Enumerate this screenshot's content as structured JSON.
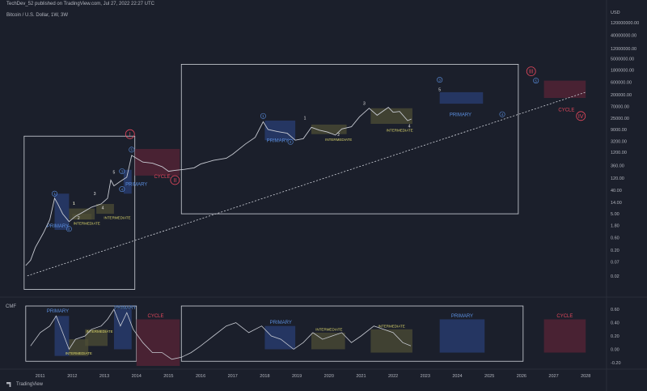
{
  "header": {
    "published": "TechDev_52 published on TradingView.com, Jul 27, 2022 22:27 UTC",
    "symbol": "Bitcoin / U.S. Dollar, 1W, 3W"
  },
  "indicator_label": "CMF",
  "logo_text": "TradingView",
  "colors": {
    "background": "#1b1f2b",
    "price_line": "#c8cbd3",
    "primary_box": "#2a3f75",
    "intermediate_box": "#4e4e36",
    "cycle_box": "#5a2437",
    "cycle_text": "#e3475c",
    "primary_text": "#5b8fe0",
    "intermediate_text": "#d9d46a"
  },
  "chart_data": [
    {
      "type": "line",
      "title": "",
      "series": [
        {
          "name": "Bitcoin / U.S. Dollar",
          "scale": "log"
        }
      ],
      "y_unit": "USD",
      "y_ticks": [
        "120000000.00",
        "40000000.00",
        "12000000.00",
        "5000000.00",
        "1800000.00",
        "600000.00",
        "200000.00",
        "70000.00",
        "25000.00",
        "9000.00",
        "3200.00",
        "1200.00",
        "360.00",
        "120.00",
        "40.00",
        "14.00",
        "5.00",
        "1.80",
        "0.60",
        "0.20",
        "0.07",
        "0.02"
      ],
      "x_ticks": [
        "2011",
        "2012",
        "2013",
        "2014",
        "2015",
        "2016",
        "2017",
        "2018",
        "2019",
        "2020",
        "2021",
        "2022",
        "2023",
        "2024",
        "2025",
        "2026",
        "2027",
        "2028"
      ],
      "price_points": [
        [
          "2010.55",
          0.05
        ],
        [
          "2010.7",
          0.08
        ],
        [
          "2010.85",
          0.25
        ],
        [
          "2011.1",
          0.9
        ],
        [
          "2011.3",
          3
        ],
        [
          "2011.45",
          20
        ],
        [
          "2011.55",
          12
        ],
        [
          "2011.7",
          5
        ],
        [
          "2011.9",
          2.5
        ],
        [
          "2012.1",
          4
        ],
        [
          "2012.3",
          5.5
        ],
        [
          "2012.6",
          9
        ],
        [
          "2012.9",
          12
        ],
        [
          "2013.1",
          20
        ],
        [
          "2013.2",
          100
        ],
        [
          "2013.3",
          60
        ],
        [
          "2013.5",
          90
        ],
        [
          "2013.7",
          130
        ],
        [
          "2013.85",
          900
        ],
        [
          "2014.0",
          700
        ],
        [
          "2014.2",
          500
        ],
        [
          "2014.5",
          450
        ],
        [
          "2014.8",
          330
        ],
        [
          "2015.0",
          220
        ],
        [
          "2015.2",
          240
        ],
        [
          "2015.5",
          260
        ],
        [
          "2015.8",
          300
        ],
        [
          "2016.0",
          420
        ],
        [
          "2016.4",
          580
        ],
        [
          "2016.8",
          700
        ],
        [
          "2017.0",
          1000
        ],
        [
          "2017.4",
          2500
        ],
        [
          "2017.7",
          4500
        ],
        [
          "2017.95",
          18000
        ],
        [
          "2018.1",
          9000
        ],
        [
          "2018.4",
          7500
        ],
        [
          "2018.7",
          6500
        ],
        [
          "2018.95",
          3500
        ],
        [
          "2019.2",
          4000
        ],
        [
          "2019.45",
          11000
        ],
        [
          "2019.7",
          8500
        ],
        [
          "2019.95",
          7200
        ],
        [
          "2020.2",
          5500
        ],
        [
          "2020.4",
          9500
        ],
        [
          "2020.7",
          11500
        ],
        [
          "2020.95",
          28000
        ],
        [
          "2021.25",
          60000
        ],
        [
          "2021.5",
          32000
        ],
        [
          "2021.85",
          65000
        ],
        [
          "2022.0",
          42000
        ],
        [
          "2022.2",
          45000
        ],
        [
          "2022.45",
          20000
        ],
        [
          "2022.57",
          23000
        ]
      ],
      "trendline": [
        [
          "2010.6",
          0.02
        ],
        [
          "2028.0",
          250000
        ]
      ],
      "wave_labels": [
        {
          "text": "1",
          "x": "2011.45",
          "y": 30,
          "style": "circle"
        },
        {
          "text": "2",
          "x": "2011.9",
          "y": 1.3,
          "style": "circle"
        },
        {
          "text": "1",
          "x": "2012.05",
          "y": 11
        },
        {
          "text": "2",
          "x": "2012.2",
          "y": 3
        },
        {
          "text": "3",
          "x": "2012.7",
          "y": 26
        },
        {
          "text": "4",
          "x": "2012.95",
          "y": 7.5
        },
        {
          "text": "5",
          "x": "2013.3",
          "y": 180
        },
        {
          "text": "3",
          "x": "2013.55",
          "y": 220,
          "style": "circle"
        },
        {
          "text": "4",
          "x": "2013.55",
          "y": 45,
          "style": "circle"
        },
        {
          "text": "5",
          "x": "2013.85",
          "y": 1500,
          "style": "circle"
        },
        {
          "text": "I",
          "x": "2013.8",
          "y": 6000,
          "style": "cycle"
        },
        {
          "text": "II",
          "x": "2015.2",
          "y": 100,
          "style": "cycle"
        },
        {
          "text": "1",
          "x": "2017.95",
          "y": 30000,
          "style": "circle"
        },
        {
          "text": "2",
          "x": "2018.8",
          "y": 3000,
          "style": "circle"
        },
        {
          "text": "1",
          "x": "2019.25",
          "y": 22000
        },
        {
          "text": "2",
          "x": "2020.3",
          "y": 5000
        },
        {
          "text": "3",
          "x": "2021.1",
          "y": 80000
        },
        {
          "text": "4",
          "x": "2022.5",
          "y": 11000
        },
        {
          "text": "3",
          "x": "2023.45",
          "y": 750000,
          "style": "circle"
        },
        {
          "text": "5",
          "x": "2023.45",
          "y": 280000
        },
        {
          "text": "4",
          "x": "2025.4",
          "y": 35000,
          "style": "circle"
        },
        {
          "text": "5",
          "x": "2026.45",
          "y": 700000,
          "style": "circle"
        },
        {
          "text": "III",
          "x": "2026.3",
          "y": 1600000,
          "style": "cycle"
        },
        {
          "text": "IV",
          "x": "2027.85",
          "y": 30000,
          "style": "cycle"
        }
      ],
      "zones": [
        {
          "kind": "PRIMARY",
          "label": "PRIMARY",
          "x": [
            "2011.45",
            "2011.9"
          ],
          "y": [
            1.2,
            30
          ],
          "label_at": [
            "2011.55",
            1.5
          ]
        },
        {
          "kind": "INTERMEDIATE",
          "label": "1",
          "x": [
            "2011.9",
            "2012.7"
          ],
          "y": [
            3,
            8
          ],
          "label_at": [
            "2012.05",
            11
          ]
        },
        {
          "kind": "INTERMEDIATE",
          "label": "INTERMEDIATE",
          "x": [
            "2012.75",
            "2013.3"
          ],
          "y": [
            5,
            12
          ],
          "label_at": [
            "2013.4",
            3.2
          ]
        },
        {
          "kind": "INTERMEDIATE",
          "label": "INTERMEDIATE",
          "x": [
            "2012.0",
            "2012.6"
          ],
          "y": [
            3,
            5
          ],
          "label_at": [
            "2012.45",
            1.9
          ]
        },
        {
          "kind": "PRIMARY",
          "label": "PRIMARY",
          "x": [
            "2013.6",
            "2013.85"
          ],
          "y": [
            30,
            250
          ],
          "label_at": [
            "2014.0",
            60
          ]
        },
        {
          "kind": "CYCLE",
          "label": "CYCLE",
          "x": [
            "2013.95",
            "2015.35"
          ],
          "y": [
            150,
            1600
          ],
          "label_at": [
            "2014.8",
            120
          ]
        },
        {
          "kind": "PRIMARY",
          "label": "PRIMARY",
          "x": [
            "2018.0",
            "2018.95"
          ],
          "y": [
            3500,
            20000
          ],
          "label_at": [
            "2018.4",
            3000
          ]
        },
        {
          "kind": "INTERMEDIATE",
          "label": "INTERMEDIATE",
          "x": [
            "2019.45",
            "2020.55"
          ],
          "y": [
            6000,
            14000
          ],
          "label_at": [
            "2020.3",
            3300
          ]
        },
        {
          "kind": "INTERMEDIATE",
          "label": "INTERMEDIATE",
          "x": [
            "2021.3",
            "2022.6"
          ],
          "y": [
            15000,
            60000
          ],
          "label_at": [
            "2022.2",
            7500
          ]
        },
        {
          "kind": "PRIMARY",
          "label": "PRIMARY",
          "x": [
            "2023.45",
            "2024.8"
          ],
          "y": [
            90000,
            250000
          ],
          "label_at": [
            "2024.1",
            30000
          ]
        },
        {
          "kind": "CYCLE",
          "label": "CYCLE",
          "x": [
            "2026.7",
            "2028.0"
          ],
          "y": [
            150000,
            700000
          ],
          "label_at": [
            "2027.4",
            45000
          ]
        }
      ],
      "frames": [
        {
          "x": [
            "2010.5",
            "2013.95"
          ],
          "y": [
            0.006,
            5000
          ]
        },
        {
          "x": [
            "2015.4",
            "2025.9"
          ],
          "y": [
            5,
            3000000
          ]
        }
      ]
    },
    {
      "type": "line",
      "title": "CMF",
      "series": [
        {
          "name": "CMF"
        }
      ],
      "y_ticks": [
        "0.60",
        "0.40",
        "0.20",
        "0.00",
        "-0.20"
      ],
      "ylim": [
        -0.25,
        0.65
      ],
      "cmf_points": [
        [
          "2010.7",
          0.05
        ],
        [
          "2011.0",
          0.25
        ],
        [
          "2011.3",
          0.35
        ],
        [
          "2011.5",
          0.5
        ],
        [
          "2011.7",
          0.25
        ],
        [
          "2011.9",
          0.0
        ],
        [
          "2012.1",
          0.15
        ],
        [
          "2012.4",
          0.2
        ],
        [
          "2012.6",
          0.3
        ],
        [
          "2012.9",
          0.35
        ],
        [
          "2013.1",
          0.45
        ],
        [
          "2013.3",
          0.6
        ],
        [
          "2013.5",
          0.35
        ],
        [
          "2013.7",
          0.55
        ],
        [
          "2013.9",
          0.3
        ],
        [
          "2014.2",
          0.1
        ],
        [
          "2014.5",
          -0.05
        ],
        [
          "2014.8",
          -0.05
        ],
        [
          "2015.1",
          -0.15
        ],
        [
          "2015.4",
          -0.12
        ],
        [
          "2015.7",
          -0.05
        ],
        [
          "2016.0",
          0.05
        ],
        [
          "2016.4",
          0.2
        ],
        [
          "2016.8",
          0.35
        ],
        [
          "2017.1",
          0.4
        ],
        [
          "2017.5",
          0.25
        ],
        [
          "2017.9",
          0.35
        ],
        [
          "2018.2",
          0.2
        ],
        [
          "2018.5",
          0.15
        ],
        [
          "2018.9",
          0.0
        ],
        [
          "2019.2",
          0.1
        ],
        [
          "2019.5",
          0.25
        ],
        [
          "2019.8",
          0.15
        ],
        [
          "2020.1",
          0.2
        ],
        [
          "2020.4",
          0.25
        ],
        [
          "2020.7",
          0.1
        ],
        [
          "2021.0",
          0.2
        ],
        [
          "2021.4",
          0.35
        ],
        [
          "2021.7",
          0.3
        ],
        [
          "2022.0",
          0.25
        ],
        [
          "2022.3",
          0.1
        ],
        [
          "2022.55",
          0.05
        ]
      ],
      "zones": [
        {
          "kind": "PRIMARY",
          "label": "PRIMARY",
          "x": [
            "2011.45",
            "2011.9"
          ],
          "y": [
            -0.1,
            0.5
          ],
          "label_at": [
            "2011.55",
            0.55
          ]
        },
        {
          "kind": "INTERMEDIATE",
          "label": "INTERMEDIATE",
          "x": [
            "2011.9",
            "2012.5"
          ],
          "y": [
            -0.1,
            0.15
          ],
          "label_at": [
            "2012.2",
            -0.08
          ]
        },
        {
          "kind": "INTERMEDIATE",
          "label": "INTERMEDIATE",
          "x": [
            "2012.4",
            "2013.1"
          ],
          "y": [
            0.05,
            0.3
          ],
          "label_at": [
            "2012.85",
            0.25
          ]
        },
        {
          "kind": "PRIMARY",
          "label": "PRIMARY",
          "x": [
            "2013.3",
            "2013.85"
          ],
          "y": [
            0.0,
            0.6
          ],
          "label_at": [
            "2013.65",
            0.6
          ]
        },
        {
          "kind": "CYCLE",
          "label": "CYCLE",
          "x": [
            "2014.0",
            "2015.35"
          ],
          "y": [
            -0.25,
            0.45
          ],
          "label_at": [
            "2014.6",
            0.48
          ]
        },
        {
          "kind": "PRIMARY",
          "label": "PRIMARY",
          "x": [
            "2018.0",
            "2018.95"
          ],
          "y": [
            0.0,
            0.35
          ],
          "label_at": [
            "2018.5",
            0.38
          ]
        },
        {
          "kind": "INTERMEDIATE",
          "label": "INTERMEDIATE",
          "x": [
            "2019.45",
            "2020.5"
          ],
          "y": [
            0.0,
            0.25
          ],
          "label_at": [
            "2020.0",
            0.28
          ]
        },
        {
          "kind": "INTERMEDIATE",
          "label": "INTERMEDIATE",
          "x": [
            "2021.3",
            "2022.6"
          ],
          "y": [
            -0.05,
            0.3
          ],
          "label_at": [
            "2021.95",
            0.33
          ]
        },
        {
          "kind": "PRIMARY",
          "label": "PRIMARY",
          "x": [
            "2023.45",
            "2024.85"
          ],
          "y": [
            -0.05,
            0.45
          ],
          "label_at": [
            "2024.15",
            0.48
          ]
        },
        {
          "kind": "CYCLE",
          "label": "CYCLE",
          "x": [
            "2026.7",
            "2028.0"
          ],
          "y": [
            -0.05,
            0.45
          ],
          "label_at": [
            "2027.35",
            0.48
          ]
        }
      ],
      "frames": [
        {
          "x": [
            "2010.55",
            "2014.0"
          ],
          "y": [
            -0.18,
            0.65
          ]
        },
        {
          "x": [
            "2015.4",
            "2026.05"
          ],
          "y": [
            -0.18,
            0.65
          ]
        }
      ]
    }
  ]
}
